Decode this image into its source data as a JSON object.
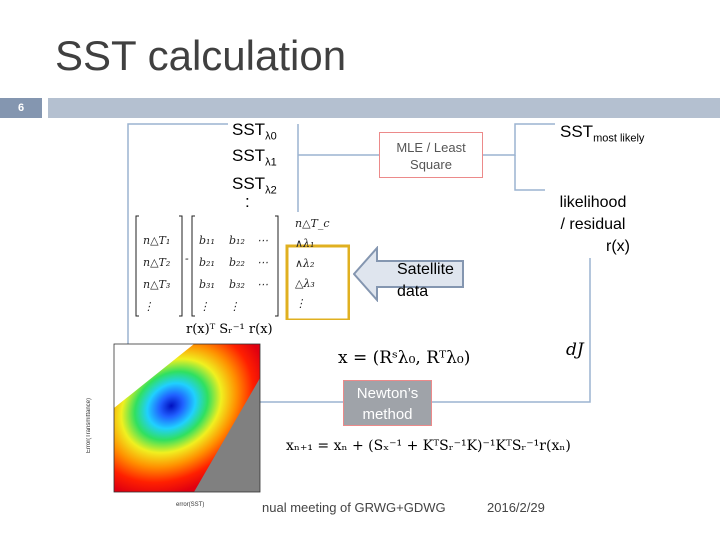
{
  "slide": {
    "title": "SST calculation",
    "number": "6"
  },
  "sst_list": [
    {
      "base": "SST",
      "sub": "λ0"
    },
    {
      "base": "SST",
      "sub": "λ1"
    },
    {
      "base": "SST",
      "sub": "λ2"
    }
  ],
  "ellipsis": ":",
  "mle_box": {
    "line1": "MLE / Least",
    "line2": "Square"
  },
  "sst_most_likely": {
    "base": "SST",
    "sub": "most likely"
  },
  "likelihood": {
    "line1": "likelihood",
    "line2": "/ residual",
    "line3": "r(x)"
  },
  "satellite": {
    "line1": "Satellite",
    "line2": "data"
  },
  "newton_box": {
    "line1": "Newton’s",
    "line2": "method"
  },
  "equations": {
    "residual": "r(x)ᵀ Sᵣ⁻¹ r(x)",
    "state": "x = (Rˢλ₀, Rᵀλ₀)",
    "dJ": "dJ",
    "newton": "xₙ₊₁ = xₙ + (Sₓ⁻¹ + KᵀSᵣ⁻¹K)⁻¹KᵀSᵣ⁻¹r(xₙ)"
  },
  "matrix": {
    "col1": [
      "n△T₁",
      "n△T₂",
      "n△T₃",
      "⋮"
    ],
    "col2": [
      "b₁₁",
      "b₂₁",
      "b₃₁",
      "⋮"
    ],
    "col3": [
      "b₁₂",
      "b₂₂",
      "b₃₂",
      "⋮"
    ],
    "col4": [
      "⋯",
      "⋯",
      "⋯",
      ""
    ],
    "col5": [
      "n△T_c",
      "∧λ₁",
      "∧λ₂",
      "△λ₃",
      "⋮"
    ]
  },
  "heatmap": {
    "x_axis_label": "error(SST)",
    "y_axis_label": "Error(Transmittance)"
  },
  "footer": {
    "meeting": "nual meeting of GRWG+GDWG",
    "date": "2016/2/29"
  },
  "colors": {
    "title_bar": "#b4c0d0",
    "slide_num_bg": "#8496b0",
    "box_border": "#ec8a8a",
    "newton_fill": "#9fa3a9",
    "arrow_fill": "#8496b0",
    "highlight": "#e0b020",
    "loop_line": "#9bb3d0"
  }
}
